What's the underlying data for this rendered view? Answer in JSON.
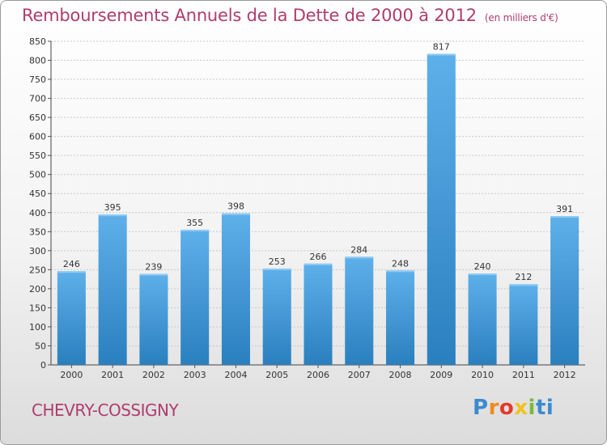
{
  "header": {
    "title": "Remboursements Annuels de la Dette de 2000 à 2012",
    "unit": "(en milliers d'€)"
  },
  "footer": {
    "commune": "CHEVRY-COSSIGNY",
    "logo_letters": [
      "P",
      "r",
      "o",
      "x",
      "i",
      "ti"
    ]
  },
  "chart_data": {
    "type": "bar",
    "categories": [
      "2000",
      "2001",
      "2002",
      "2003",
      "2004",
      "2005",
      "2006",
      "2007",
      "2008",
      "2009",
      "2010",
      "2011",
      "2012"
    ],
    "values": [
      246,
      395,
      239,
      355,
      398,
      253,
      266,
      284,
      248,
      817,
      240,
      212,
      391
    ],
    "yticks": [
      0,
      50,
      100,
      150,
      200,
      250,
      300,
      350,
      400,
      450,
      500,
      550,
      600,
      650,
      700,
      750,
      800,
      850
    ],
    "ylim": [
      0,
      850
    ],
    "grid": true,
    "colors": {
      "bar_top": "#5eb0ea",
      "bar_bottom": "#2a7fbe",
      "grid": "#c8c8c8",
      "title": "#b03c6e"
    }
  }
}
